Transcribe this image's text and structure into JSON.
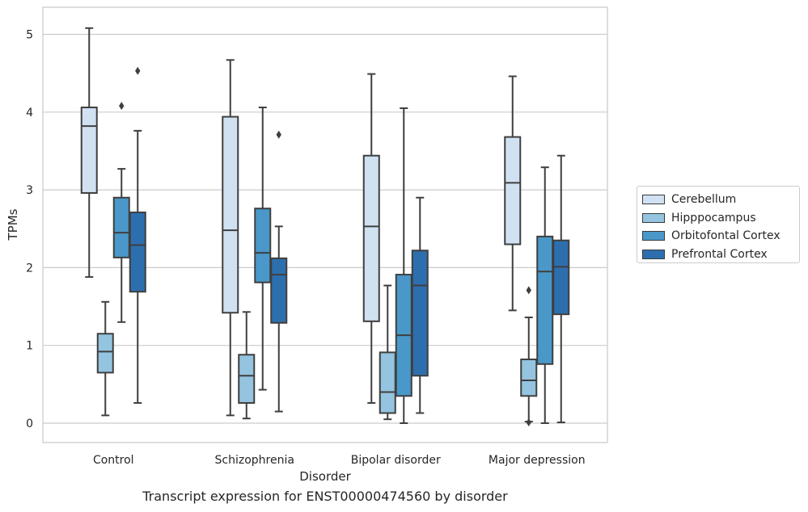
{
  "chart_data": {
    "type": "box",
    "title": "Transcript expression for ENST00000474560 by disorder",
    "xlabel": "Disorder",
    "ylabel": "TPMs",
    "ylim": [
      -0.25,
      5.35
    ],
    "yticks": [
      0,
      1,
      2,
      3,
      4,
      5
    ],
    "categories": [
      "Control",
      "Schizophrenia",
      "Bipolar disorder",
      "Major depression"
    ],
    "grid": true,
    "legend_position": "right",
    "series": [
      {
        "name": "Cerebellum",
        "color": "#d0e1f2",
        "boxes": [
          {
            "whisker_low": 1.88,
            "q1": 2.96,
            "median": 3.82,
            "q3": 4.06,
            "whisker_high": 5.08,
            "outliers": []
          },
          {
            "whisker_low": 0.1,
            "q1": 1.42,
            "median": 2.48,
            "q3": 3.94,
            "whisker_high": 4.67,
            "outliers": []
          },
          {
            "whisker_low": 0.26,
            "q1": 1.31,
            "median": 2.53,
            "q3": 3.44,
            "whisker_high": 4.49,
            "outliers": []
          },
          {
            "whisker_low": 1.45,
            "q1": 2.3,
            "median": 3.09,
            "q3": 3.68,
            "whisker_high": 4.46,
            "outliers": []
          }
        ]
      },
      {
        "name": "Hipppocampus",
        "color": "#94c4df",
        "boxes": [
          {
            "whisker_low": 0.1,
            "q1": 0.65,
            "median": 0.92,
            "q3": 1.15,
            "whisker_high": 1.56,
            "outliers": []
          },
          {
            "whisker_low": 0.06,
            "q1": 0.26,
            "median": 0.61,
            "q3": 0.88,
            "whisker_high": 1.43,
            "outliers": []
          },
          {
            "whisker_low": 0.05,
            "q1": 0.13,
            "median": 0.4,
            "q3": 0.91,
            "whisker_high": 1.77,
            "outliers": []
          },
          {
            "whisker_low": 0.02,
            "q1": 0.35,
            "median": 0.55,
            "q3": 0.82,
            "whisker_high": 1.36,
            "outliers": [
              1.71,
              0.01
            ]
          }
        ]
      },
      {
        "name": "Orbitofontal Cortex",
        "color": "#4a98c9",
        "boxes": [
          {
            "whisker_low": 1.3,
            "q1": 2.13,
            "median": 2.45,
            "q3": 2.9,
            "whisker_high": 3.27,
            "outliers": [
              4.08
            ]
          },
          {
            "whisker_low": 0.43,
            "q1": 1.81,
            "median": 2.19,
            "q3": 2.76,
            "whisker_high": 4.06,
            "outliers": []
          },
          {
            "whisker_low": 0.0,
            "q1": 0.35,
            "median": 1.13,
            "q3": 1.91,
            "whisker_high": 4.05,
            "outliers": []
          },
          {
            "whisker_low": 0.0,
            "q1": 0.76,
            "median": 1.95,
            "q3": 2.4,
            "whisker_high": 3.29,
            "outliers": []
          }
        ]
      },
      {
        "name": "Prefrontal Cortex",
        "color": "#2d6fae",
        "boxes": [
          {
            "whisker_low": 0.26,
            "q1": 1.69,
            "median": 2.29,
            "q3": 2.71,
            "whisker_high": 3.76,
            "outliers": [
              4.53
            ]
          },
          {
            "whisker_low": 0.15,
            "q1": 1.29,
            "median": 1.91,
            "q3": 2.12,
            "whisker_high": 2.53,
            "outliers": [
              3.71
            ]
          },
          {
            "whisker_low": 0.13,
            "q1": 0.61,
            "median": 1.77,
            "q3": 2.22,
            "whisker_high": 2.9,
            "outliers": []
          },
          {
            "whisker_low": 0.01,
            "q1": 1.4,
            "median": 2.01,
            "q3": 2.35,
            "whisker_high": 3.44,
            "outliers": []
          }
        ]
      }
    ]
  }
}
